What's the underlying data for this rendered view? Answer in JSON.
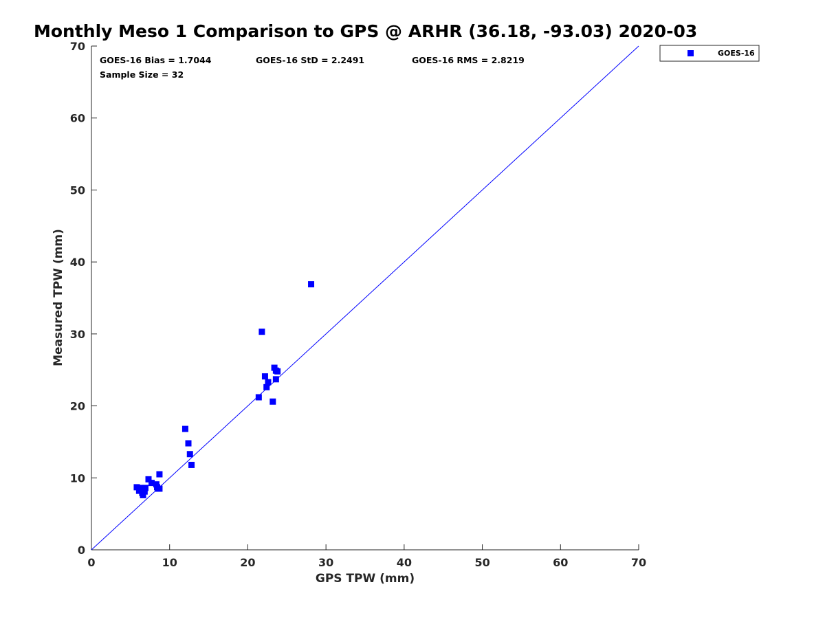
{
  "chart_data": {
    "type": "scatter",
    "title": "Monthly Meso 1 Comparison to GPS @ ARHR (36.18, -93.03) 2020-03",
    "xlabel": "GPS TPW (mm)",
    "ylabel": "Measured TPW (mm)",
    "xlim": [
      0,
      70
    ],
    "ylim": [
      0,
      70
    ],
    "xticks": [
      0,
      10,
      20,
      30,
      40,
      50,
      60,
      70
    ],
    "yticks": [
      0,
      10,
      20,
      30,
      40,
      50,
      60,
      70
    ],
    "grid": false,
    "legend_placement": "outside-top-right",
    "colors": {
      "series": "#0000ff",
      "reference_line": "#0000ff",
      "axes": "#262626"
    },
    "annotations": {
      "bias": "GOES-16 Bias = 1.7044",
      "std": "GOES-16 StD = 2.2491",
      "rms": "GOES-16 RMS = 2.8219",
      "sample": "Sample Size = 32"
    },
    "reference_line": {
      "x": [
        0,
        70
      ],
      "y": [
        0,
        70
      ]
    },
    "series": [
      {
        "name": "GOES-16",
        "marker": "square",
        "points": [
          [
            5.8,
            8.7
          ],
          [
            6.1,
            8.2
          ],
          [
            6.3,
            8.6
          ],
          [
            6.5,
            7.9
          ],
          [
            6.6,
            7.6
          ],
          [
            6.7,
            8.4
          ],
          [
            6.8,
            8.1
          ],
          [
            6.9,
            8.6
          ],
          [
            7.3,
            9.8
          ],
          [
            7.7,
            9.3
          ],
          [
            8.3,
            9.1
          ],
          [
            8.5,
            8.5
          ],
          [
            8.7,
            8.5
          ],
          [
            8.7,
            10.5
          ],
          [
            12.0,
            16.8
          ],
          [
            12.4,
            14.8
          ],
          [
            12.6,
            13.3
          ],
          [
            12.8,
            11.8
          ],
          [
            21.4,
            21.2
          ],
          [
            21.8,
            30.3
          ],
          [
            22.2,
            24.1
          ],
          [
            22.4,
            22.6
          ],
          [
            22.6,
            23.3
          ],
          [
            23.2,
            20.6
          ],
          [
            23.4,
            25.3
          ],
          [
            23.6,
            23.7
          ],
          [
            23.6,
            24.9
          ],
          [
            23.8,
            24.8
          ],
          [
            28.1,
            36.9
          ],
          [
            6.2,
            8.4
          ],
          [
            6.6,
            8.3
          ],
          [
            8.4,
            8.7
          ]
        ]
      }
    ]
  }
}
